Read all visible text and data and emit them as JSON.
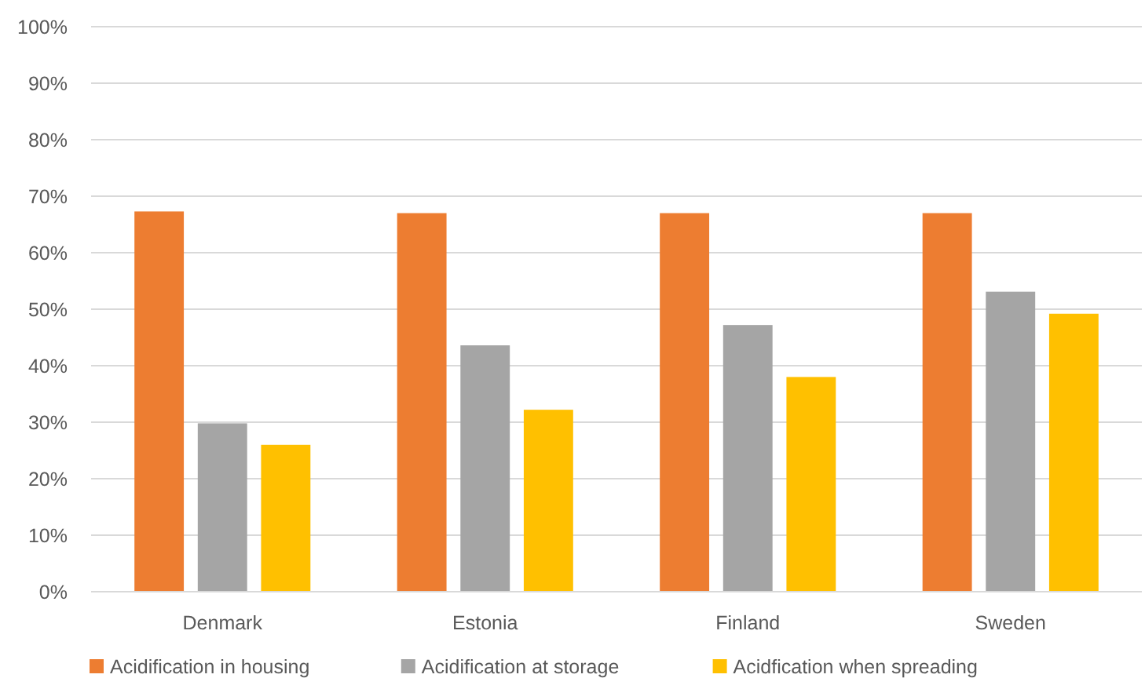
{
  "chart_data": {
    "type": "bar",
    "categories": [
      "Denmark",
      "Estonia",
      "Finland",
      "Sweden"
    ],
    "series": [
      {
        "name": "Acidification in housing",
        "color": "#ed7d31",
        "values": [
          67.3,
          67,
          67,
          67
        ]
      },
      {
        "name": "Acidification at storage",
        "color": "#a5a5a5",
        "values": [
          29.8,
          43.6,
          47.2,
          53.1
        ]
      },
      {
        "name": "Acidfication when spreading",
        "color": "#ffc000",
        "values": [
          26,
          32.2,
          38,
          49.2
        ]
      }
    ],
    "ylim": [
      0,
      100
    ],
    "yticks": [
      {
        "value": 0,
        "label": "0%"
      },
      {
        "value": 10,
        "label": "10%"
      },
      {
        "value": 20,
        "label": "20%"
      },
      {
        "value": 30,
        "label": "30%"
      },
      {
        "value": 40,
        "label": "40%"
      },
      {
        "value": 50,
        "label": "50%"
      },
      {
        "value": 60,
        "label": "60%"
      },
      {
        "value": 70,
        "label": "70%"
      },
      {
        "value": 80,
        "label": "80%"
      },
      {
        "value": 90,
        "label": "90%"
      },
      {
        "value": 100,
        "label": "100%"
      }
    ],
    "grid": "y",
    "legend": "bottom"
  }
}
